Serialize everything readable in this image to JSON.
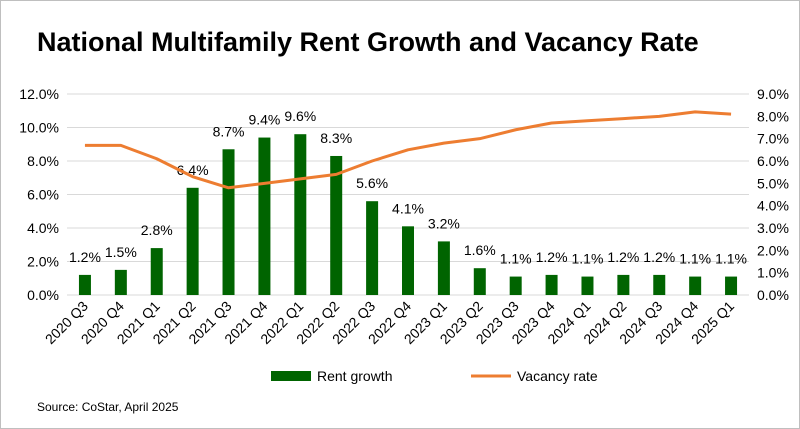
{
  "chart_data": {
    "type": "bar+line",
    "title": "National Multifamily Rent Growth and Vacancy Rate",
    "categories": [
      "2020 Q3",
      "2020 Q4",
      "2021 Q1",
      "2021 Q2",
      "2021 Q3",
      "2021 Q4",
      "2022 Q1",
      "2022 Q2",
      "2022 Q3",
      "2022 Q4",
      "2023 Q1",
      "2023 Q2",
      "2023 Q3",
      "2023 Q4",
      "2024 Q1",
      "2024 Q2",
      "2024 Q3",
      "2024 Q4",
      "2025 Q1"
    ],
    "series": [
      {
        "name": "Rent growth",
        "type": "bar",
        "axis": "left",
        "color": "#006400",
        "values": [
          1.2,
          1.5,
          2.8,
          6.4,
          8.7,
          9.4,
          9.6,
          8.3,
          5.6,
          4.1,
          3.2,
          1.6,
          1.1,
          1.2,
          1.1,
          1.2,
          1.2,
          1.1,
          1.1
        ],
        "labels": [
          "1.2%",
          "1.5%",
          "2.8%",
          "6.4%",
          "8.7%",
          "9.4%",
          "9.6%",
          "8.3%",
          "5.6%",
          "4.1%",
          "3.2%",
          "1.6%",
          "1.1%",
          "1.2%",
          "1.1%",
          "1.2%",
          "1.2%",
          "1.1%",
          "1.1%"
        ]
      },
      {
        "name": "Vacancy rate",
        "type": "line",
        "axis": "right",
        "color": "#ED7D31",
        "values": [
          6.7,
          6.7,
          6.1,
          5.3,
          4.8,
          5.0,
          5.2,
          5.4,
          6.0,
          6.5,
          6.8,
          7.0,
          7.4,
          7.7,
          7.8,
          7.9,
          8.0,
          8.2,
          8.1
        ]
      }
    ],
    "y_left": {
      "range": [
        0,
        12
      ],
      "ticks": [
        "0.0%",
        "2.0%",
        "4.0%",
        "6.0%",
        "8.0%",
        "10.0%",
        "12.0%"
      ]
    },
    "y_right": {
      "range": [
        0,
        9
      ],
      "ticks": [
        "0.0%",
        "1.0%",
        "2.0%",
        "3.0%",
        "4.0%",
        "5.0%",
        "6.0%",
        "7.0%",
        "8.0%",
        "9.0%"
      ]
    },
    "grid": true,
    "legend": "bottom",
    "source": "Source: CoStar, April 2025"
  }
}
